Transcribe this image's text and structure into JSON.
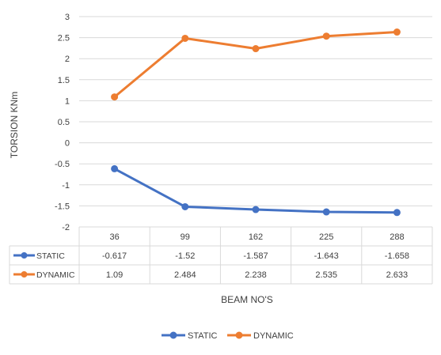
{
  "chart_data": {
    "type": "line",
    "title": "",
    "xlabel": "BEAM NO'S",
    "ylabel": "TORSION KNm",
    "ylim": [
      -2,
      3
    ],
    "yticks": [
      "3",
      "2.5",
      "2",
      "1.5",
      "1",
      "0.5",
      "0",
      "-0.5",
      "-1",
      "-1.5",
      "-2"
    ],
    "grid": true,
    "legend_position": "bottom",
    "data_table": true,
    "categories": [
      "36",
      "99",
      "162",
      "225",
      "288"
    ],
    "series": [
      {
        "name": "STATIC",
        "color": "#4472C4",
        "values": [
          -0.617,
          -1.52,
          -1.587,
          -1.643,
          -1.658
        ],
        "labels": [
          "-0.617",
          "-1.52",
          "-1.587",
          "-1.643",
          "-1.658"
        ]
      },
      {
        "name": "DYNAMIC",
        "color": "#ED7D31",
        "values": [
          1.09,
          2.484,
          2.238,
          2.535,
          2.633
        ],
        "labels": [
          "1.09",
          "2.484",
          "2.238",
          "2.535",
          "2.633"
        ]
      }
    ]
  }
}
